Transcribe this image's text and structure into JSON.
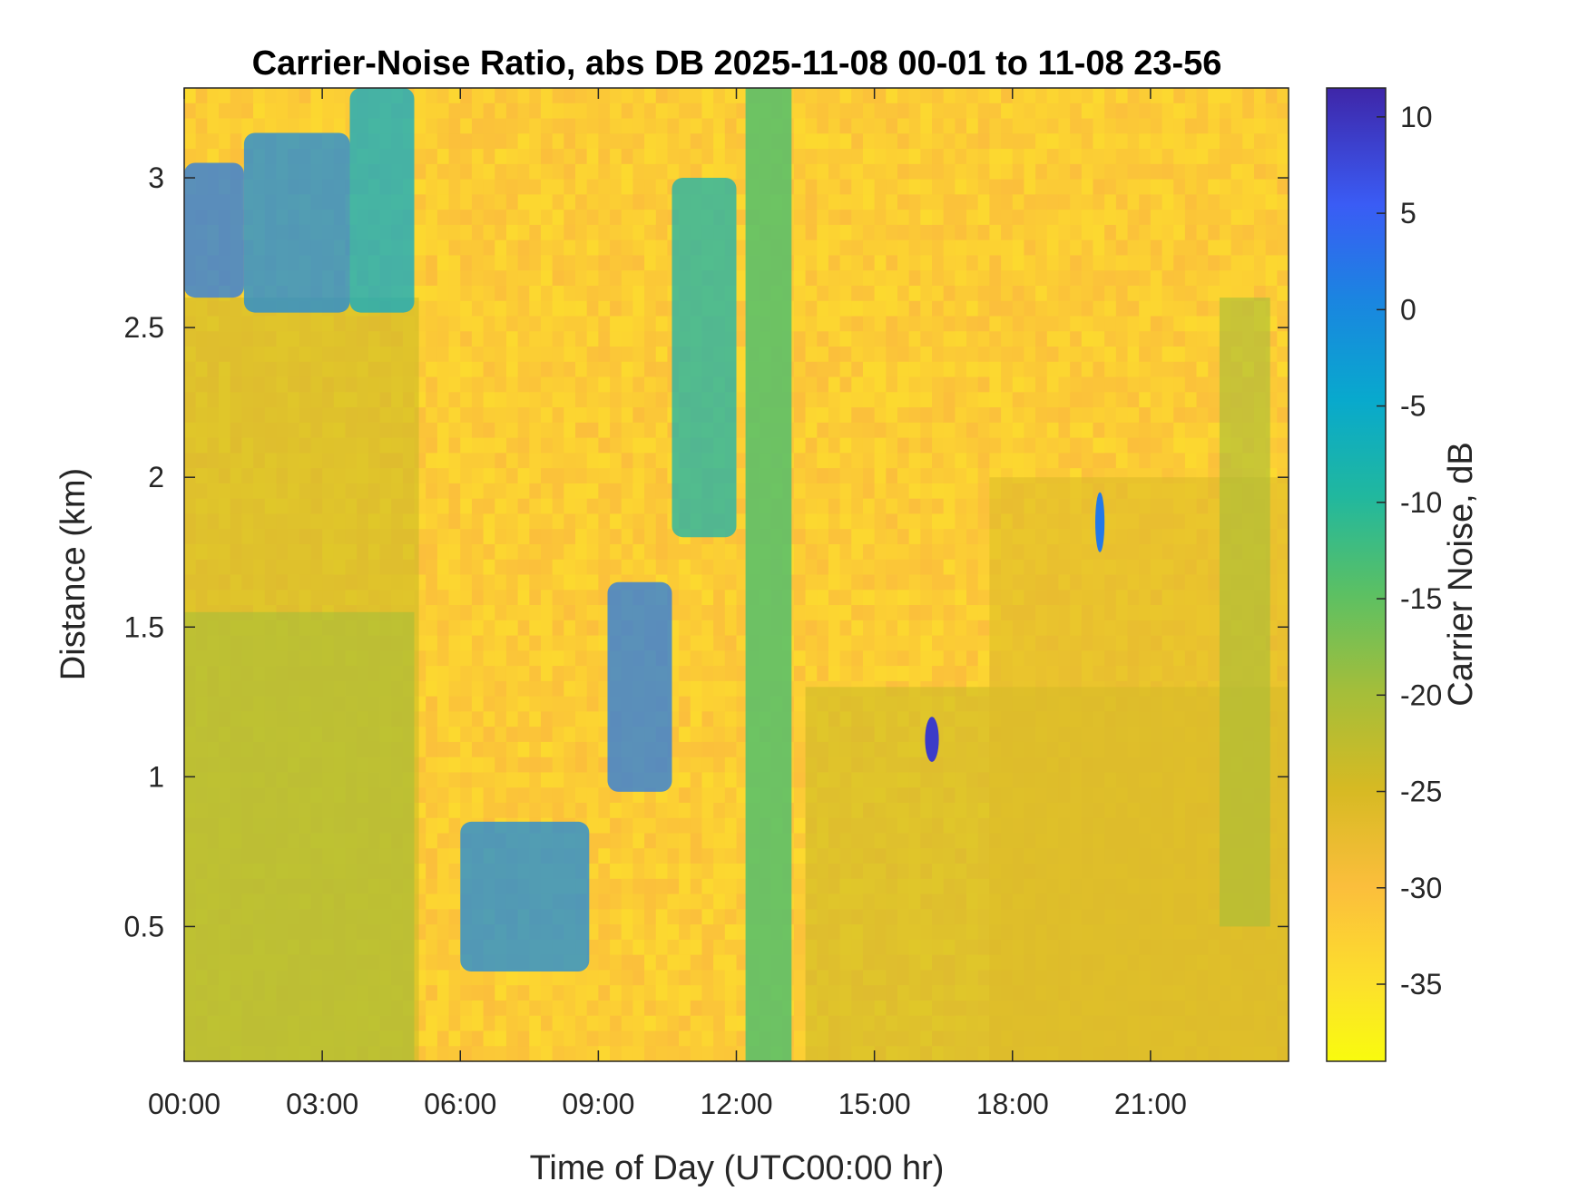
{
  "chart_data": {
    "type": "heatmap",
    "title": "Carrier-Noise Ratio, abs DB 2025-11-08 00-01 to 11-08 23-56",
    "xlabel": "Time of Day (UTC00:00 hr)",
    "ylabel": "Distance (km)",
    "xlim_hours": [
      0,
      24
    ],
    "ylim_km": [
      0.05,
      3.3
    ],
    "x_ticks": [
      {
        "value": 0,
        "label": "00:00"
      },
      {
        "value": 3,
        "label": "03:00"
      },
      {
        "value": 6,
        "label": "06:00"
      },
      {
        "value": 9,
        "label": "09:00"
      },
      {
        "value": 12,
        "label": "12:00"
      },
      {
        "value": 15,
        "label": "15:00"
      },
      {
        "value": 18,
        "label": "18:00"
      },
      {
        "value": 21,
        "label": "21:00"
      }
    ],
    "y_ticks": [
      {
        "value": 0.5,
        "label": "0.5"
      },
      {
        "value": 1,
        "label": "1"
      },
      {
        "value": 1.5,
        "label": "1.5"
      },
      {
        "value": 2,
        "label": "2"
      },
      {
        "value": 2.5,
        "label": "2.5"
      },
      {
        "value": 3,
        "label": "3"
      }
    ],
    "colorbar": {
      "label": "Carrier Noise, dB",
      "clim": [
        -39,
        11.5
      ],
      "ticks": [
        {
          "value": 10,
          "label": "10"
        },
        {
          "value": 5,
          "label": "5"
        },
        {
          "value": 0,
          "label": "0"
        },
        {
          "value": -5,
          "label": "-5"
        },
        {
          "value": -10,
          "label": "-10"
        },
        {
          "value": -15,
          "label": "-15"
        },
        {
          "value": -20,
          "label": "-20"
        },
        {
          "value": -25,
          "label": "-25"
        },
        {
          "value": -30,
          "label": "-30"
        },
        {
          "value": -35,
          "label": "-35"
        }
      ],
      "colormap": "parula-reversed"
    },
    "background_level_db": -32,
    "features": [
      {
        "kind": "band",
        "t": [
          0,
          5.1
        ],
        "d": [
          0.05,
          2.6
        ],
        "db": -24
      },
      {
        "kind": "band",
        "t": [
          0,
          5.0
        ],
        "d": [
          0.05,
          1.55
        ],
        "db": -20
      },
      {
        "kind": "streak",
        "t": [
          0,
          1.3
        ],
        "d": [
          2.6,
          3.05
        ],
        "db": 2
      },
      {
        "kind": "streak",
        "t": [
          1.3,
          3.6
        ],
        "d": [
          2.55,
          3.15
        ],
        "db": 0
      },
      {
        "kind": "streak",
        "t": [
          3.6,
          5.0
        ],
        "d": [
          2.55,
          3.3
        ],
        "db": -5
      },
      {
        "kind": "streak",
        "t": [
          6.0,
          8.8
        ],
        "d": [
          0.35,
          0.85
        ],
        "db": 0
      },
      {
        "kind": "streak",
        "t": [
          9.2,
          10.6
        ],
        "d": [
          0.95,
          1.65
        ],
        "db": 2
      },
      {
        "kind": "streak",
        "t": [
          10.6,
          12.0
        ],
        "d": [
          1.8,
          3.0
        ],
        "db": -8
      },
      {
        "kind": "column",
        "t": [
          12.2,
          13.2
        ],
        "d": [
          0.05,
          3.3
        ],
        "db": -14
      },
      {
        "kind": "band",
        "t": [
          13.5,
          24
        ],
        "d": [
          0.05,
          1.3
        ],
        "db": -24
      },
      {
        "kind": "band",
        "t": [
          17.5,
          24
        ],
        "d": [
          0.05,
          2.0
        ],
        "db": -26
      },
      {
        "kind": "spot",
        "t": [
          16.1,
          16.4
        ],
        "d": [
          1.05,
          1.2
        ],
        "db": 9
      },
      {
        "kind": "spot",
        "t": [
          19.8,
          20.0
        ],
        "d": [
          1.75,
          1.95
        ],
        "db": 2
      },
      {
        "kind": "band",
        "t": [
          22.5,
          23.6
        ],
        "d": [
          0.5,
          2.6
        ],
        "db": -20
      }
    ]
  }
}
